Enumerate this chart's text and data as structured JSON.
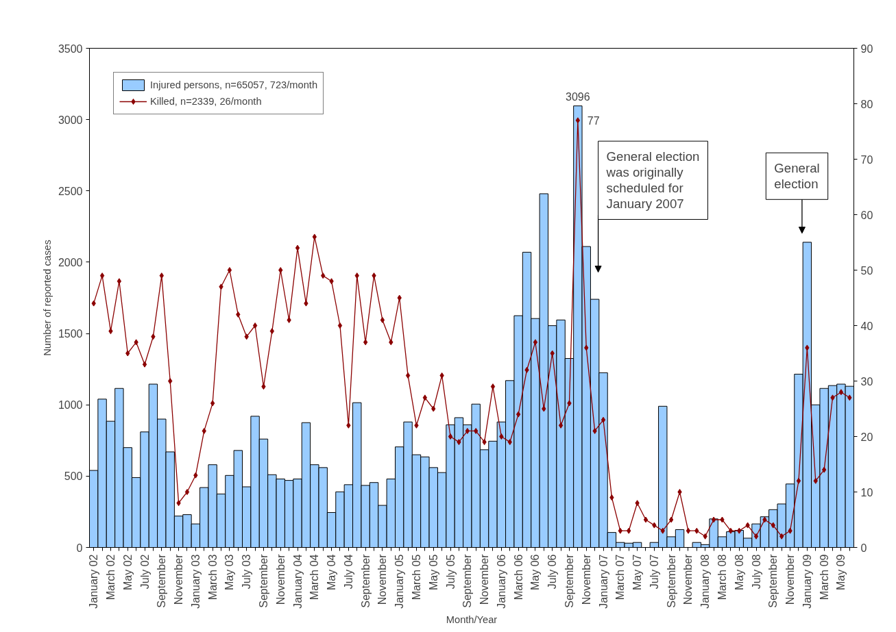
{
  "chart_data": {
    "type": "bar",
    "xlabel": "Month/Year",
    "ylabel": "Number of reported cases",
    "categories": [
      "January 02",
      null,
      "March 02",
      null,
      "May 02",
      null,
      "July 02",
      null,
      "September",
      null,
      "November",
      null,
      "January 03",
      null,
      "March 03",
      null,
      "May 03",
      null,
      "July 03",
      null,
      "September",
      null,
      "November",
      null,
      "January 04",
      null,
      "March 04",
      null,
      "May 04",
      null,
      "July 04",
      null,
      "September",
      null,
      "November",
      null,
      "January 05",
      null,
      "March 05",
      null,
      "May 05",
      null,
      "July 05",
      null,
      "September",
      null,
      "November",
      null,
      "January 06",
      null,
      "March 06",
      null,
      "May 06",
      null,
      "July 06",
      null,
      "September",
      null,
      "November",
      null,
      "January 07",
      null,
      "March 07",
      null,
      "May 07",
      null,
      "July 07",
      null,
      "September",
      null,
      "November",
      null,
      "January 08",
      null,
      "March 08",
      null,
      "May 08",
      null,
      "July 08",
      null,
      "September",
      null,
      "November",
      null,
      "January 09",
      null,
      "March 09",
      null,
      "May 09",
      null
    ],
    "series": [
      {
        "name": "Injured persons, n=65057, 723/month",
        "color": "#99ccff",
        "values": [
          540,
          1040,
          885,
          1115,
          700,
          490,
          810,
          1145,
          900,
          670,
          220,
          230,
          165,
          420,
          580,
          375,
          505,
          680,
          425,
          920,
          760,
          510,
          480,
          470,
          480,
          875,
          580,
          560,
          245,
          390,
          440,
          1015,
          435,
          455,
          295,
          480,
          705,
          880,
          650,
          635,
          560,
          525,
          860,
          910,
          860,
          1005,
          685,
          745,
          880,
          1170,
          1625,
          2070,
          1605,
          2480,
          1555,
          1595,
          1325,
          3096,
          2110,
          1740,
          1225,
          105,
          35,
          30,
          35,
          null,
          35,
          990,
          75,
          125,
          null,
          35,
          20,
          200,
          75,
          110,
          120,
          65,
          165,
          215,
          265,
          305,
          445,
          1215,
          2140,
          1000,
          1115,
          1135,
          1145,
          1130
        ],
        "value_labels": [
          null,
          null,
          null,
          null,
          null,
          null,
          null,
          null,
          null,
          null,
          null,
          null,
          null,
          null,
          null,
          null,
          null,
          null,
          null,
          null,
          null,
          null,
          null,
          null,
          null,
          null,
          null,
          null,
          null,
          null,
          null,
          null,
          null,
          null,
          null,
          null,
          null,
          null,
          null,
          null,
          null,
          null,
          null,
          null,
          null,
          null,
          null,
          null,
          null,
          null,
          null,
          null,
          null,
          null,
          null,
          null,
          null,
          "3096",
          null,
          null,
          null,
          null,
          null,
          null,
          null,
          null,
          null,
          null,
          null,
          null,
          null,
          null,
          null,
          null,
          null,
          null,
          null,
          null,
          null,
          null,
          null,
          null,
          null,
          null,
          null,
          null,
          null,
          null,
          null,
          null
        ]
      },
      {
        "name": "Killed, n=2339, 26/month",
        "type": "line",
        "axis": "y2",
        "color": "#8b0000",
        "marker": "diamond",
        "values": [
          44,
          49,
          39,
          48,
          35,
          37,
          33,
          38,
          49,
          30,
          8,
          10,
          13,
          21,
          26,
          47,
          50,
          42,
          38,
          40,
          29,
          39,
          50,
          41,
          54,
          44,
          56,
          49,
          48,
          40,
          22,
          49,
          37,
          49,
          41,
          37,
          45,
          31,
          22,
          27,
          25,
          31,
          20,
          19,
          21,
          21,
          19,
          29,
          20,
          19,
          24,
          32,
          37,
          25,
          35,
          22,
          26,
          77,
          36,
          21,
          23,
          9,
          3,
          3,
          8,
          5,
          4,
          3,
          5,
          10,
          3,
          3,
          2,
          5,
          5,
          3,
          3,
          4,
          2,
          5,
          4,
          2,
          3,
          12,
          36,
          12,
          14,
          27,
          28,
          27
        ],
        "value_labels": [
          null,
          null,
          null,
          null,
          null,
          null,
          null,
          null,
          null,
          null,
          null,
          null,
          null,
          null,
          null,
          null,
          null,
          null,
          null,
          null,
          null,
          null,
          null,
          null,
          null,
          null,
          null,
          null,
          null,
          null,
          null,
          null,
          null,
          null,
          null,
          null,
          null,
          null,
          null,
          null,
          null,
          null,
          null,
          null,
          null,
          null,
          null,
          null,
          null,
          null,
          null,
          null,
          null,
          null,
          null,
          null,
          null,
          "77",
          null,
          null,
          null,
          null,
          null,
          null,
          null,
          null,
          null,
          null,
          null,
          null,
          null,
          null,
          null,
          null,
          null,
          null,
          null,
          null,
          null,
          null,
          null,
          null,
          null,
          null,
          null,
          null,
          null,
          null,
          null,
          null
        ]
      }
    ],
    "ylim": [
      0,
      3500
    ],
    "yticks": [
      0,
      500,
      1000,
      1500,
      2000,
      2500,
      3000,
      3500
    ],
    "y2lim": [
      0,
      90
    ],
    "y2ticks": [
      0,
      10,
      20,
      30,
      40,
      50,
      60,
      70,
      80,
      90
    ],
    "annotations": [
      "General election\nwas originally\nscheduled for\nJanuary 2007",
      "General\nelection"
    ],
    "legend": "top left",
    "grid": false
  }
}
